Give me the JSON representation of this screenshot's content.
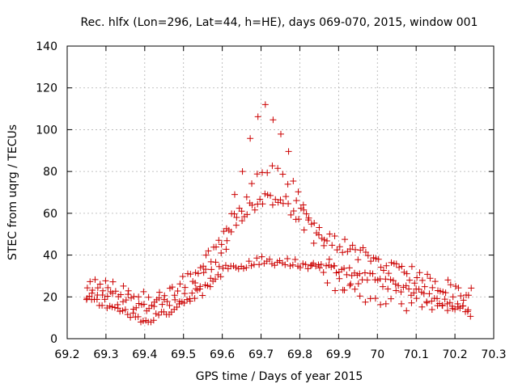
{
  "chart_data": {
    "type": "scatter",
    "title": "Rec. hlfx (Lon=296, Lat=44, h=HE), days 069-070, 2015, window 001",
    "xlabel": "GPS time / Days of year 2015",
    "ylabel": "STEC from uqrg / TECUs",
    "xlim": [
      69.2,
      70.3
    ],
    "ylim": [
      0,
      140
    ],
    "xticks": [
      "69.2",
      "69.3",
      "69.4",
      "69.5",
      "69.6",
      "69.7",
      "69.8",
      "69.9",
      "70",
      "70.1",
      "70.2",
      "70.3"
    ],
    "yticks": [
      "0",
      "20",
      "40",
      "60",
      "80",
      "100",
      "120",
      "140"
    ],
    "grid": true,
    "marker": "plus",
    "color": "#cc0000",
    "x": [],
    "y": []
  }
}
